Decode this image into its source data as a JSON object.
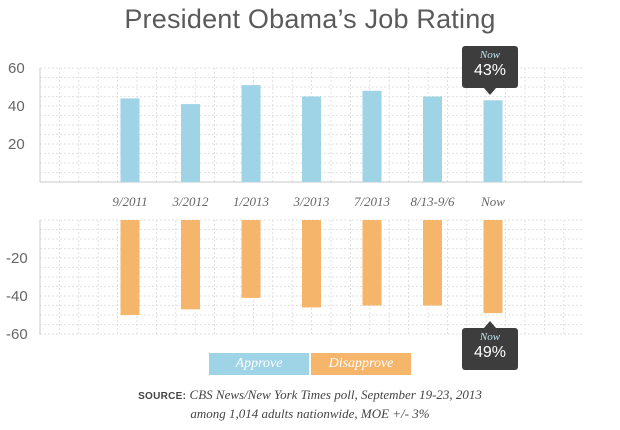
{
  "title": "President Obama’s Job Rating",
  "colors": {
    "approve": "#9fd3e6",
    "disapprove": "#f5b56b",
    "grid": "#d9d9d9",
    "callout": "#3d3d3d"
  },
  "chart_data": {
    "type": "bar",
    "title": "President Obama’s Job Rating",
    "categories": [
      "9/2011",
      "3/2012",
      "1/2013",
      "3/2013",
      "7/2013",
      "8/13-9/6",
      "Now"
    ],
    "series": [
      {
        "name": "Approve",
        "values": [
          44,
          41,
          51,
          45,
          48,
          45,
          43
        ]
      },
      {
        "name": "Disapprove",
        "values": [
          -50,
          -47,
          -41,
          -46,
          -45,
          -45,
          -49
        ]
      }
    ],
    "top_panel": {
      "ylim": [
        0,
        60
      ],
      "yticks": [
        "60",
        "40",
        "20"
      ]
    },
    "bottom_panel": {
      "ylim": [
        -60,
        0
      ],
      "yticks": [
        "-20",
        "-40",
        "-60"
      ]
    },
    "grid": true,
    "legend": [
      "Approve",
      "Disapprove"
    ],
    "legend_position": "bottom-center"
  },
  "callouts": {
    "approve": {
      "label": "Now",
      "value": "43%"
    },
    "disapprove": {
      "label": "Now",
      "value": "49%"
    }
  },
  "source": {
    "label": "SOURCE:",
    "line1": "CBS News/New York Times poll, September 19-23, 2013",
    "line2": "among 1,014 adults nationwide, MOE +/- 3%"
  }
}
